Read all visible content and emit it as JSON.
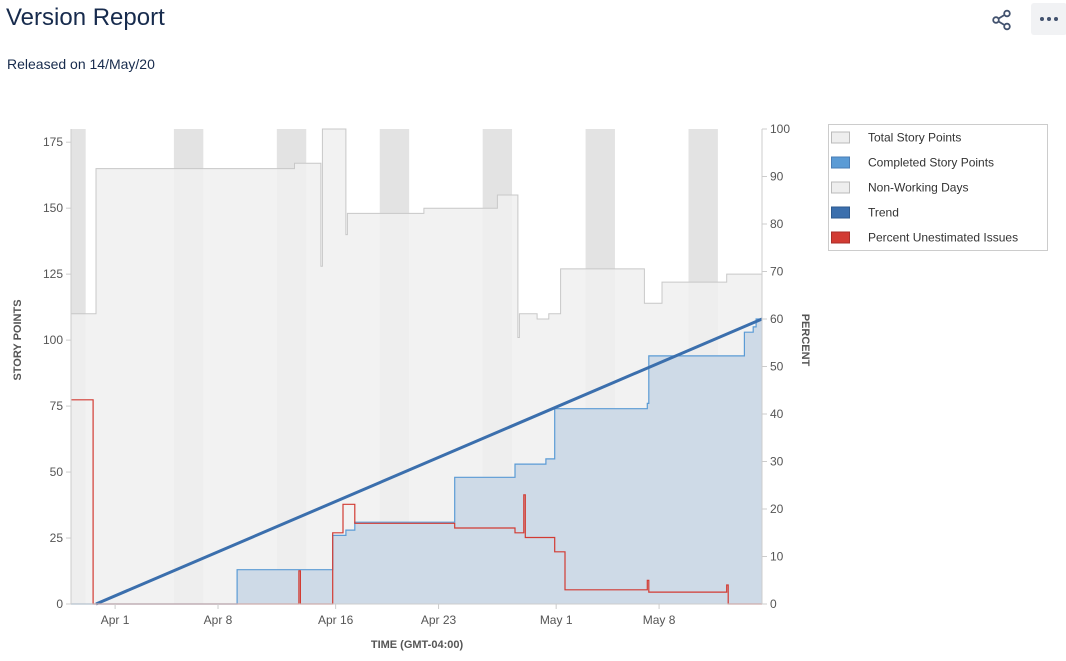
{
  "header": {
    "title": "Version Report",
    "subtitle": "Released on 14/May/20",
    "share_icon": "share-icon",
    "more_icon": "more-icon"
  },
  "chart_data": {
    "type": "area",
    "x_axis": {
      "title": "TIME (GMT-04:00)",
      "tick_labels": [
        "Apr 1",
        "Apr 8",
        "Apr 16",
        "Apr 23",
        "May 1",
        "May 8"
      ],
      "tick_days": [
        1,
        8,
        16,
        23,
        31,
        38
      ],
      "range": [
        -2,
        45
      ],
      "unit": "day offset from Apr 1"
    },
    "y_axis_left": {
      "title": "STORY POINTS",
      "range": [
        0,
        180
      ],
      "ticks": [
        0,
        25,
        50,
        75,
        100,
        125,
        150,
        175
      ]
    },
    "y_axis_right": {
      "title": "PERCENT",
      "range": [
        0,
        100
      ],
      "ticks": [
        0,
        10,
        20,
        30,
        40,
        50,
        60,
        70,
        80,
        90,
        100
      ]
    },
    "non_working_days": [
      [
        -2,
        -1
      ],
      [
        5,
        7
      ],
      [
        12,
        14
      ],
      [
        19,
        21
      ],
      [
        26,
        28
      ],
      [
        33,
        35
      ],
      [
        40,
        42
      ]
    ],
    "legend_position": "top-right",
    "legend": [
      {
        "label": "Total Story Points",
        "color": "#eeeeee",
        "border": "#bbbbbb"
      },
      {
        "label": "Completed Story Points",
        "color": "#5b9bd5",
        "border": "#4a7db5"
      },
      {
        "label": "Non-Working Days",
        "color": "#eeeeee",
        "border": "#bbbbbb"
      },
      {
        "label": "Trend",
        "color": "#3b6fad",
        "border": "#2e5a8e"
      },
      {
        "label": "Percent Unestimated Issues",
        "color": "#d23b33",
        "border": "#a82e28"
      }
    ],
    "series": [
      {
        "name": "Total Story Points",
        "axis": "left",
        "step": true,
        "color": "#f0f0f0",
        "stroke": "#c8c8c8",
        "points": [
          [
            -2,
            110
          ],
          [
            -0.3,
            110
          ],
          [
            -0.3,
            165
          ],
          [
            13.2,
            165
          ],
          [
            13.2,
            167
          ],
          [
            15,
            167
          ],
          [
            15,
            128
          ],
          [
            15.1,
            128
          ],
          [
            15.1,
            180
          ],
          [
            16.7,
            180
          ],
          [
            16.7,
            140
          ],
          [
            16.8,
            140
          ],
          [
            16.8,
            148
          ],
          [
            22,
            148
          ],
          [
            22,
            150
          ],
          [
            27,
            150
          ],
          [
            27,
            155
          ],
          [
            28.4,
            155
          ],
          [
            28.4,
            101
          ],
          [
            28.5,
            101
          ],
          [
            28.5,
            110
          ],
          [
            29.7,
            110
          ],
          [
            29.7,
            108
          ],
          [
            30.5,
            108
          ],
          [
            30.5,
            110
          ],
          [
            31.3,
            110
          ],
          [
            31.3,
            127
          ],
          [
            37,
            127
          ],
          [
            37,
            114
          ],
          [
            38.2,
            114
          ],
          [
            38.2,
            122
          ],
          [
            42.6,
            122
          ],
          [
            42.6,
            125
          ],
          [
            45,
            125
          ]
        ]
      },
      {
        "name": "Completed Story Points",
        "axis": "left",
        "step": true,
        "color": "#c8d6e5",
        "stroke": "#5b9bd5",
        "points": [
          [
            -2,
            0
          ],
          [
            9.3,
            0
          ],
          [
            9.3,
            13
          ],
          [
            15.8,
            13
          ],
          [
            15.8,
            26
          ],
          [
            16.7,
            26
          ],
          [
            16.7,
            28
          ],
          [
            17.3,
            28
          ],
          [
            17.3,
            31
          ],
          [
            24.1,
            31
          ],
          [
            24.1,
            48
          ],
          [
            28.2,
            48
          ],
          [
            28.2,
            53
          ],
          [
            30.3,
            53
          ],
          [
            30.3,
            55
          ],
          [
            30.9,
            55
          ],
          [
            30.9,
            74
          ],
          [
            37.2,
            74
          ],
          [
            37.2,
            76
          ],
          [
            37.3,
            76
          ],
          [
            37.3,
            94
          ],
          [
            43.8,
            94
          ],
          [
            43.8,
            103
          ],
          [
            44.4,
            103
          ],
          [
            44.4,
            105
          ],
          [
            44.6,
            105
          ],
          [
            44.6,
            108
          ],
          [
            45,
            108
          ]
        ]
      },
      {
        "name": "Trend",
        "axis": "left",
        "step": false,
        "color": "#3b6fad",
        "points": [
          [
            -0.3,
            0
          ],
          [
            45,
            108
          ]
        ]
      },
      {
        "name": "Percent Unestimated Issues",
        "axis": "right",
        "step": true,
        "color": "#d23b33",
        "points": [
          [
            -2,
            43
          ],
          [
            -0.5,
            43
          ],
          [
            -0.5,
            0
          ],
          [
            13.5,
            0
          ],
          [
            13.5,
            7
          ],
          [
            13.6,
            7
          ],
          [
            13.6,
            0
          ],
          [
            15.8,
            0
          ],
          [
            15.8,
            15
          ],
          [
            16.5,
            15
          ],
          [
            16.5,
            21
          ],
          [
            17.3,
            21
          ],
          [
            17.3,
            17
          ],
          [
            24.1,
            17
          ],
          [
            24.1,
            16
          ],
          [
            28.2,
            16
          ],
          [
            28.2,
            15
          ],
          [
            28.8,
            15
          ],
          [
            28.8,
            23
          ],
          [
            28.9,
            23
          ],
          [
            28.9,
            14
          ],
          [
            30.9,
            14
          ],
          [
            30.9,
            11
          ],
          [
            31.6,
            11
          ],
          [
            31.6,
            3
          ],
          [
            37.2,
            3
          ],
          [
            37.2,
            5
          ],
          [
            37.3,
            5
          ],
          [
            37.3,
            2.5
          ],
          [
            42.6,
            2.5
          ],
          [
            42.6,
            4
          ],
          [
            42.7,
            4
          ],
          [
            42.7,
            0
          ],
          [
            45,
            0
          ]
        ]
      }
    ]
  }
}
